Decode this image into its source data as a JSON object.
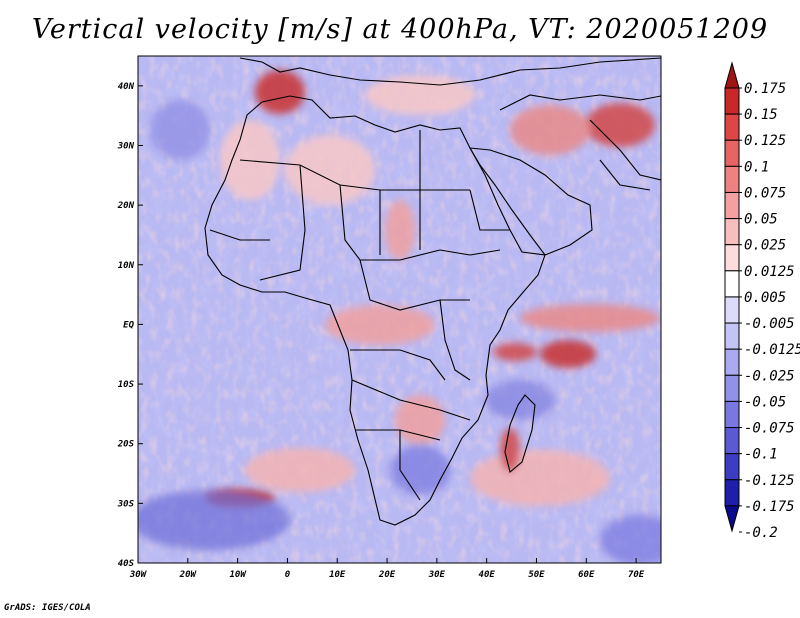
{
  "title": "Vertical velocity [m/s] at 400hPa, VT: 2020051209",
  "credit": "GrADS: IGES/COLA",
  "map": {
    "variable": "Vertical velocity",
    "units": "m/s",
    "level": "400hPa",
    "valid_time": "2020051209",
    "lon_range": [
      -30,
      75
    ],
    "lat_range": [
      -40,
      45
    ],
    "x_ticks": [
      {
        "lon": -30,
        "label": "30W"
      },
      {
        "lon": -20,
        "label": "20W"
      },
      {
        "lon": -10,
        "label": "10W"
      },
      {
        "lon": 0,
        "label": "0"
      },
      {
        "lon": 10,
        "label": "10E"
      },
      {
        "lon": 20,
        "label": "20E"
      },
      {
        "lon": 30,
        "label": "30E"
      },
      {
        "lon": 40,
        "label": "40E"
      },
      {
        "lon": 50,
        "label": "50E"
      },
      {
        "lon": 60,
        "label": "60E"
      },
      {
        "lon": 70,
        "label": "70E"
      }
    ],
    "y_ticks": [
      {
        "lat": 40,
        "label": "40N"
      },
      {
        "lat": 30,
        "label": "30N"
      },
      {
        "lat": 20,
        "label": "20N"
      },
      {
        "lat": 10,
        "label": "10N"
      },
      {
        "lat": 0,
        "label": "EQ"
      },
      {
        "lat": -10,
        "label": "10S"
      },
      {
        "lat": -20,
        "label": "20S"
      },
      {
        "lat": -30,
        "label": "30S"
      },
      {
        "lat": -40,
        "label": "40S"
      }
    ]
  },
  "colorbar": {
    "labels": [
      "0.175",
      "0.15",
      "0.125",
      "0.1",
      "0.075",
      "0.05",
      "0.025",
      "0.0125",
      "0.005",
      "-0.005",
      "-0.0125",
      "-0.025",
      "-0.05",
      "-0.075",
      "-0.1",
      "-0.125",
      "-0.175",
      "-0.2"
    ],
    "colors": [
      "#a01414",
      "#c82828",
      "#dc4646",
      "#e66464",
      "#ee8282",
      "#f4a0a0",
      "#f8bebe",
      "#fcdcdc",
      "#ffffff",
      "#dcdcfa",
      "#c3c3f5",
      "#aaaaf0",
      "#9191e8",
      "#7878e0",
      "#5a5ad2",
      "#3c3cc4",
      "#1e1eaa",
      "#0a0a8c"
    ]
  }
}
